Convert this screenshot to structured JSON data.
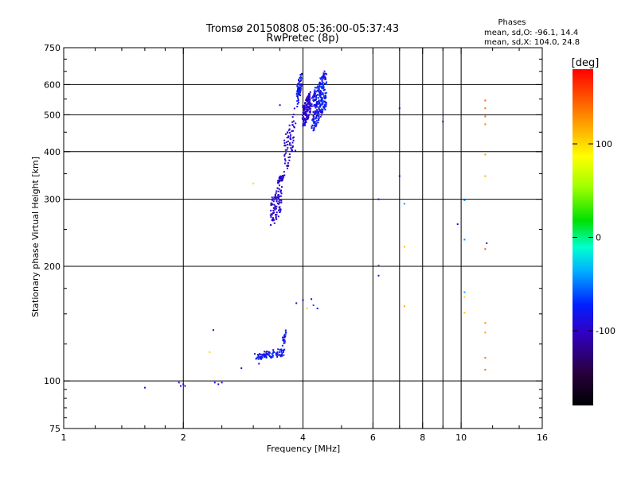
{
  "chart_data": {
    "type": "scatter",
    "title": "Tromsø 20150808 05:36:00-05:37:43",
    "subtitle": "RwPretec (8p)",
    "phase_header": "Phases",
    "phase_line_o": "mean, sd,O: -96.1, 14.4",
    "phase_line_x": "mean, sd,X: 104.0, 24.8",
    "xlabel": "Frequency [MHz]",
    "ylabel": "Stationary phase Virtual Height [km]",
    "x_scale": "log",
    "y_scale": "log",
    "xlim": [
      1,
      16
    ],
    "ylim": [
      75,
      750
    ],
    "x_ticks": [
      1,
      2,
      4,
      6,
      8,
      10,
      16
    ],
    "x_tick_labels": [
      "1",
      "2",
      "4",
      "6",
      "8",
      "10",
      "16"
    ],
    "x_gridlines": [
      2,
      4,
      6,
      10
    ],
    "x_minor_lines": [
      7,
      8,
      9
    ],
    "y_ticks": [
      75,
      100,
      200,
      300,
      400,
      500,
      600,
      750
    ],
    "y_tick_labels": [
      "75",
      "100",
      "200",
      "300",
      "400",
      "500",
      "600",
      "750"
    ],
    "y_gridlines": [
      100,
      200,
      300,
      400,
      500,
      600
    ],
    "grid": true,
    "colorbar": {
      "label": "[deg]",
      "range": [
        -180,
        180
      ],
      "ticks": [
        100,
        0,
        -100
      ],
      "tick_labels": [
        "100",
        "0",
        "-100"
      ]
    },
    "series": [
      {
        "values": [
          {
            "x": 1.6,
            "y": 96,
            "p": -95
          },
          {
            "x": 1.95,
            "y": 99,
            "p": -95
          },
          {
            "x": 1.97,
            "y": 97,
            "p": -90
          },
          {
            "x": 2.0,
            "y": 98,
            "p": -100
          },
          {
            "x": 2.02,
            "y": 97,
            "p": -95
          },
          {
            "x": 2.33,
            "y": 119,
            "p": 100
          },
          {
            "x": 2.38,
            "y": 136,
            "p": -95
          },
          {
            "x": 2.4,
            "y": 99,
            "p": -95
          },
          {
            "x": 2.45,
            "y": 98,
            "p": -90
          },
          {
            "x": 2.5,
            "y": 99,
            "p": -95
          },
          {
            "x": 2.8,
            "y": 108,
            "p": -95
          },
          {
            "x": 3.0,
            "y": 330,
            "p": 100
          },
          {
            "x": 3.1,
            "y": 111,
            "p": -95
          },
          {
            "x": 3.5,
            "y": 530,
            "p": -100
          },
          {
            "x": 3.85,
            "y": 160,
            "p": -95
          },
          {
            "x": 4.0,
            "y": 163,
            "p": -100
          },
          {
            "x": 4.1,
            "y": 155,
            "p": 100
          },
          {
            "x": 4.2,
            "y": 164,
            "p": -100
          },
          {
            "x": 4.25,
            "y": 158,
            "p": -60
          },
          {
            "x": 4.35,
            "y": 155,
            "p": -95
          },
          {
            "x": 6.2,
            "y": 300,
            "p": -100
          },
          {
            "x": 6.2,
            "y": 201,
            "p": -60
          },
          {
            "x": 6.2,
            "y": 189,
            "p": -75
          },
          {
            "x": 7.0,
            "y": 520,
            "p": -95
          },
          {
            "x": 7.0,
            "y": 345,
            "p": -100
          },
          {
            "x": 7.2,
            "y": 292,
            "p": -40
          },
          {
            "x": 7.2,
            "y": 225,
            "p": 110
          },
          {
            "x": 7.2,
            "y": 157,
            "p": 120
          },
          {
            "x": 9.0,
            "y": 480,
            "p": -100
          },
          {
            "x": 9.8,
            "y": 258,
            "p": -95
          },
          {
            "x": 10.2,
            "y": 298,
            "p": -40
          },
          {
            "x": 10.2,
            "y": 235,
            "p": -45
          },
          {
            "x": 10.2,
            "y": 171,
            "p": -40
          },
          {
            "x": 10.2,
            "y": 166,
            "p": 100
          },
          {
            "x": 10.2,
            "y": 151,
            "p": 110
          },
          {
            "x": 11.5,
            "y": 545,
            "p": 150
          },
          {
            "x": 11.5,
            "y": 520,
            "p": 140
          },
          {
            "x": 11.5,
            "y": 495,
            "p": 145
          },
          {
            "x": 11.5,
            "y": 472,
            "p": 135
          },
          {
            "x": 11.5,
            "y": 393,
            "p": 125
          },
          {
            "x": 11.5,
            "y": 345,
            "p": 115
          },
          {
            "x": 11.6,
            "y": 230,
            "p": -80
          },
          {
            "x": 11.5,
            "y": 222,
            "p": 150
          },
          {
            "x": 11.5,
            "y": 142,
            "p": 130
          },
          {
            "x": 11.5,
            "y": 134,
            "p": 120
          },
          {
            "x": 11.5,
            "y": 115,
            "p": 140
          },
          {
            "x": 11.5,
            "y": 107,
            "p": 145
          }
        ]
      }
    ],
    "clusters": [
      {
        "x_range": [
          3.0,
          3.63
        ],
        "y_range": [
          113,
          122
        ],
        "count": 90,
        "phase_range": [
          -105,
          -60
        ]
      },
      {
        "x_range": [
          3.55,
          3.63
        ],
        "y_range": [
          121,
          138
        ],
        "count": 20,
        "phase_range": [
          -105,
          -60
        ]
      },
      {
        "x_range": [
          3.45,
          3.58
        ],
        "y_range": [
          330,
          350
        ],
        "count": 30,
        "phase_range": [
          -105,
          -90
        ]
      },
      {
        "x_range": [
          3.3,
          3.55
        ],
        "y_range": [
          250,
          335
        ],
        "count": 90,
        "phase_range": [
          -105,
          -90
        ]
      },
      {
        "x_range": [
          3.56,
          3.84
        ],
        "y_range": [
          340,
          520
        ],
        "count": 70,
        "phase_range": [
          -105,
          -90
        ]
      },
      {
        "x_range": [
          3.85,
          3.98
        ],
        "y_range": [
          520,
          655
        ],
        "count": 70,
        "phase_range": [
          -105,
          -60
        ]
      },
      {
        "x_range": [
          3.98,
          4.2
        ],
        "y_range": [
          460,
          580
        ],
        "count": 140,
        "phase_range": [
          -105,
          -90
        ]
      },
      {
        "x_range": [
          4.2,
          4.6
        ],
        "y_range": [
          450,
          660
        ],
        "count": 260,
        "phase_range": [
          -105,
          -60
        ]
      }
    ]
  }
}
